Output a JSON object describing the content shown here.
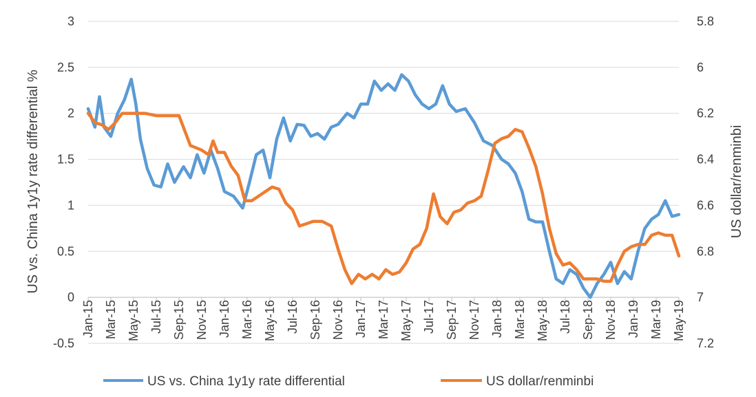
{
  "chart_data": {
    "type": "line",
    "title": "",
    "y_left": {
      "label": "US vs. China 1y1y rate differential %",
      "ticks": [
        "3",
        "2.5",
        "2",
        "1.5",
        "1",
        "0.5",
        "0",
        "-0.5"
      ],
      "range": [
        -0.5,
        3
      ]
    },
    "y_right": {
      "label": "US dollar/renminbi",
      "ticks": [
        "5.8",
        "6",
        "6.2",
        "6.4",
        "6.6",
        "6.8",
        "7",
        "7.2"
      ],
      "range": [
        5.8,
        7.2
      ],
      "inverted": true
    },
    "x_tick_labels": [
      "Jan-15",
      "Mar-15",
      "May-15",
      "Jul-15",
      "Sep-15",
      "Nov-15",
      "Jan-16",
      "Mar-16",
      "May-16",
      "Jul-16",
      "Sep-16",
      "Nov-16",
      "Jan-17",
      "Mar-17",
      "May-17",
      "Jul-17",
      "Sep-17",
      "Nov-17",
      "Jan-18",
      "Mar-18",
      "May-18",
      "Jul-18",
      "Sep-18",
      "Nov-18",
      "Jan-19",
      "Mar-19",
      "May-19"
    ],
    "grid": true,
    "legend_position": "bottom",
    "series": [
      {
        "name": "US vs. China 1y1y rate differential",
        "color": "#5b9bd5",
        "axis": "left",
        "x": [
          0,
          0.3,
          0.5,
          0.7,
          1.0,
          1.3,
          1.6,
          1.9,
          2.1,
          2.3,
          2.6,
          2.9,
          3.2,
          3.5,
          3.8,
          4.2,
          4.5,
          4.8,
          5.1,
          5.4,
          5.7,
          6.0,
          6.4,
          6.8,
          7.1,
          7.4,
          7.7,
          8.0,
          8.3,
          8.6,
          8.9,
          9.2,
          9.5,
          9.8,
          10.1,
          10.4,
          10.7,
          11.0,
          11.4,
          11.7,
          12.0,
          12.3,
          12.6,
          12.9,
          13.2,
          13.5,
          13.8,
          14.1,
          14.4,
          14.7,
          15.0,
          15.3,
          15.6,
          15.9,
          16.2,
          16.6,
          17.0,
          17.4,
          17.8,
          18.2,
          18.5,
          18.8,
          19.1,
          19.4,
          19.7,
          20.0,
          20.3,
          20.6,
          20.9,
          21.2,
          21.5,
          21.8,
          22.1,
          22.4,
          22.7,
          23.0,
          23.3,
          23.6,
          23.9,
          24.2,
          24.5,
          24.8,
          25.1,
          25.4,
          25.7,
          26.0
        ],
        "values": [
          2.05,
          1.85,
          2.18,
          1.85,
          1.75,
          2.0,
          2.15,
          2.37,
          2.1,
          1.72,
          1.4,
          1.22,
          1.2,
          1.45,
          1.25,
          1.42,
          1.3,
          1.55,
          1.35,
          1.6,
          1.4,
          1.15,
          1.1,
          0.97,
          1.25,
          1.55,
          1.6,
          1.3,
          1.72,
          1.95,
          1.7,
          1.88,
          1.87,
          1.75,
          1.78,
          1.72,
          1.85,
          1.88,
          2.0,
          1.95,
          2.1,
          2.1,
          2.35,
          2.25,
          2.32,
          2.25,
          2.42,
          2.35,
          2.2,
          2.1,
          2.05,
          2.1,
          2.3,
          2.1,
          2.02,
          2.05,
          1.9,
          1.7,
          1.65,
          1.5,
          1.45,
          1.35,
          1.15,
          0.85,
          0.82,
          0.82,
          0.5,
          0.2,
          0.15,
          0.3,
          0.25,
          0.1,
          0.0,
          0.15,
          0.25,
          0.38,
          0.15,
          0.28,
          0.2,
          0.5,
          0.75,
          0.85,
          0.9,
          1.05,
          0.88,
          0.9
        ]
      },
      {
        "name": "US dollar/renminbi",
        "color": "#ed7d31",
        "axis": "right",
        "x": [
          0,
          0.3,
          0.6,
          0.9,
          1.2,
          1.5,
          2.0,
          2.5,
          3.0,
          3.5,
          4.0,
          4.5,
          5.0,
          5.3,
          5.5,
          5.7,
          6.0,
          6.3,
          6.6,
          6.9,
          7.2,
          7.5,
          7.8,
          8.1,
          8.4,
          8.7,
          9.0,
          9.3,
          9.6,
          9.9,
          10.3,
          10.7,
          11.0,
          11.3,
          11.6,
          11.9,
          12.2,
          12.5,
          12.8,
          13.1,
          13.4,
          13.7,
          14.0,
          14.3,
          14.6,
          14.9,
          15.2,
          15.5,
          15.8,
          16.1,
          16.4,
          16.7,
          17.0,
          17.3,
          17.6,
          17.9,
          18.2,
          18.5,
          18.8,
          19.1,
          19.4,
          19.7,
          20.0,
          20.3,
          20.6,
          20.9,
          21.2,
          21.5,
          21.8,
          22.1,
          22.4,
          22.7,
          23.0,
          23.3,
          23.6,
          23.9,
          24.2,
          24.5,
          24.8,
          25.1,
          25.4,
          25.7,
          26.0
        ],
        "values": [
          6.2,
          6.24,
          6.25,
          6.27,
          6.24,
          6.2,
          6.2,
          6.2,
          6.21,
          6.21,
          6.21,
          6.34,
          6.36,
          6.38,
          6.32,
          6.37,
          6.37,
          6.43,
          6.47,
          6.58,
          6.58,
          6.56,
          6.54,
          6.52,
          6.53,
          6.59,
          6.62,
          6.69,
          6.68,
          6.67,
          6.67,
          6.69,
          6.79,
          6.88,
          6.94,
          6.9,
          6.92,
          6.9,
          6.92,
          6.88,
          6.9,
          6.89,
          6.85,
          6.79,
          6.77,
          6.7,
          6.55,
          6.65,
          6.68,
          6.63,
          6.62,
          6.59,
          6.58,
          6.56,
          6.45,
          6.33,
          6.31,
          6.3,
          6.27,
          6.28,
          6.35,
          6.43,
          6.55,
          6.7,
          6.81,
          6.86,
          6.85,
          6.88,
          6.92,
          6.92,
          6.92,
          6.93,
          6.93,
          6.86,
          6.8,
          6.78,
          6.77,
          6.77,
          6.73,
          6.72,
          6.73,
          6.73,
          6.82
        ]
      }
    ]
  }
}
